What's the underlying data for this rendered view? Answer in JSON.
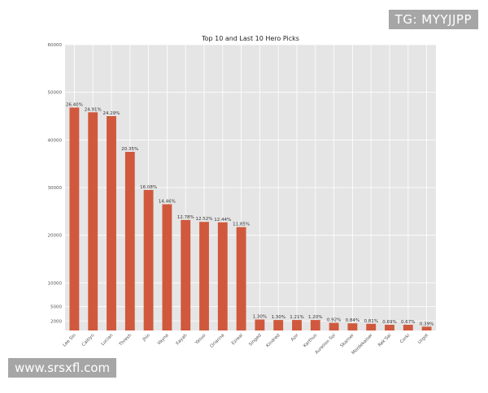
{
  "chart_data": {
    "type": "bar",
    "title": "Top 10 and Last 10 Hero Picks",
    "xlabel": "",
    "ylabel": "",
    "ylim": [
      0,
      60000
    ],
    "y_ticks": [
      2000,
      5000,
      10000,
      20000,
      30000,
      40000,
      50000,
      60000
    ],
    "grid": true,
    "bar_color": "#d0593d",
    "categories": [
      "Lee Sin",
      "Caitlyn",
      "Lucian",
      "Thresh",
      "Jhin",
      "Vayne",
      "Xayah",
      "Yasuo",
      "Orianna",
      "Ezreal",
      "Singed",
      "Kindred",
      "Azir",
      "Karthus",
      "Aurelion Sol",
      "Skarner",
      "Mordekaiser",
      "Rek'Sai",
      "Corki",
      "Urgot"
    ],
    "values": [
      46800,
      45800,
      45000,
      37500,
      29500,
      26500,
      23200,
      22800,
      22700,
      21700,
      2300,
      2200,
      2200,
      2200,
      1600,
      1500,
      1400,
      1200,
      1200,
      800
    ],
    "data_labels": [
      "26.40%",
      "24.91%",
      "24.29%",
      "20.35%",
      "16.08%",
      "14.46%",
      "12.78%",
      "12.52%",
      "12.44%",
      "11.85%",
      "1.30%",
      "1.30%",
      "1.21%",
      "1.20%",
      "0.92%",
      "0.84%",
      "0.81%",
      "0.69%",
      "0.67%",
      "0.39%"
    ]
  },
  "watermarks": {
    "top_right": "TG: MYYJJPP",
    "bottom_left": "www.srsxfl.com"
  }
}
